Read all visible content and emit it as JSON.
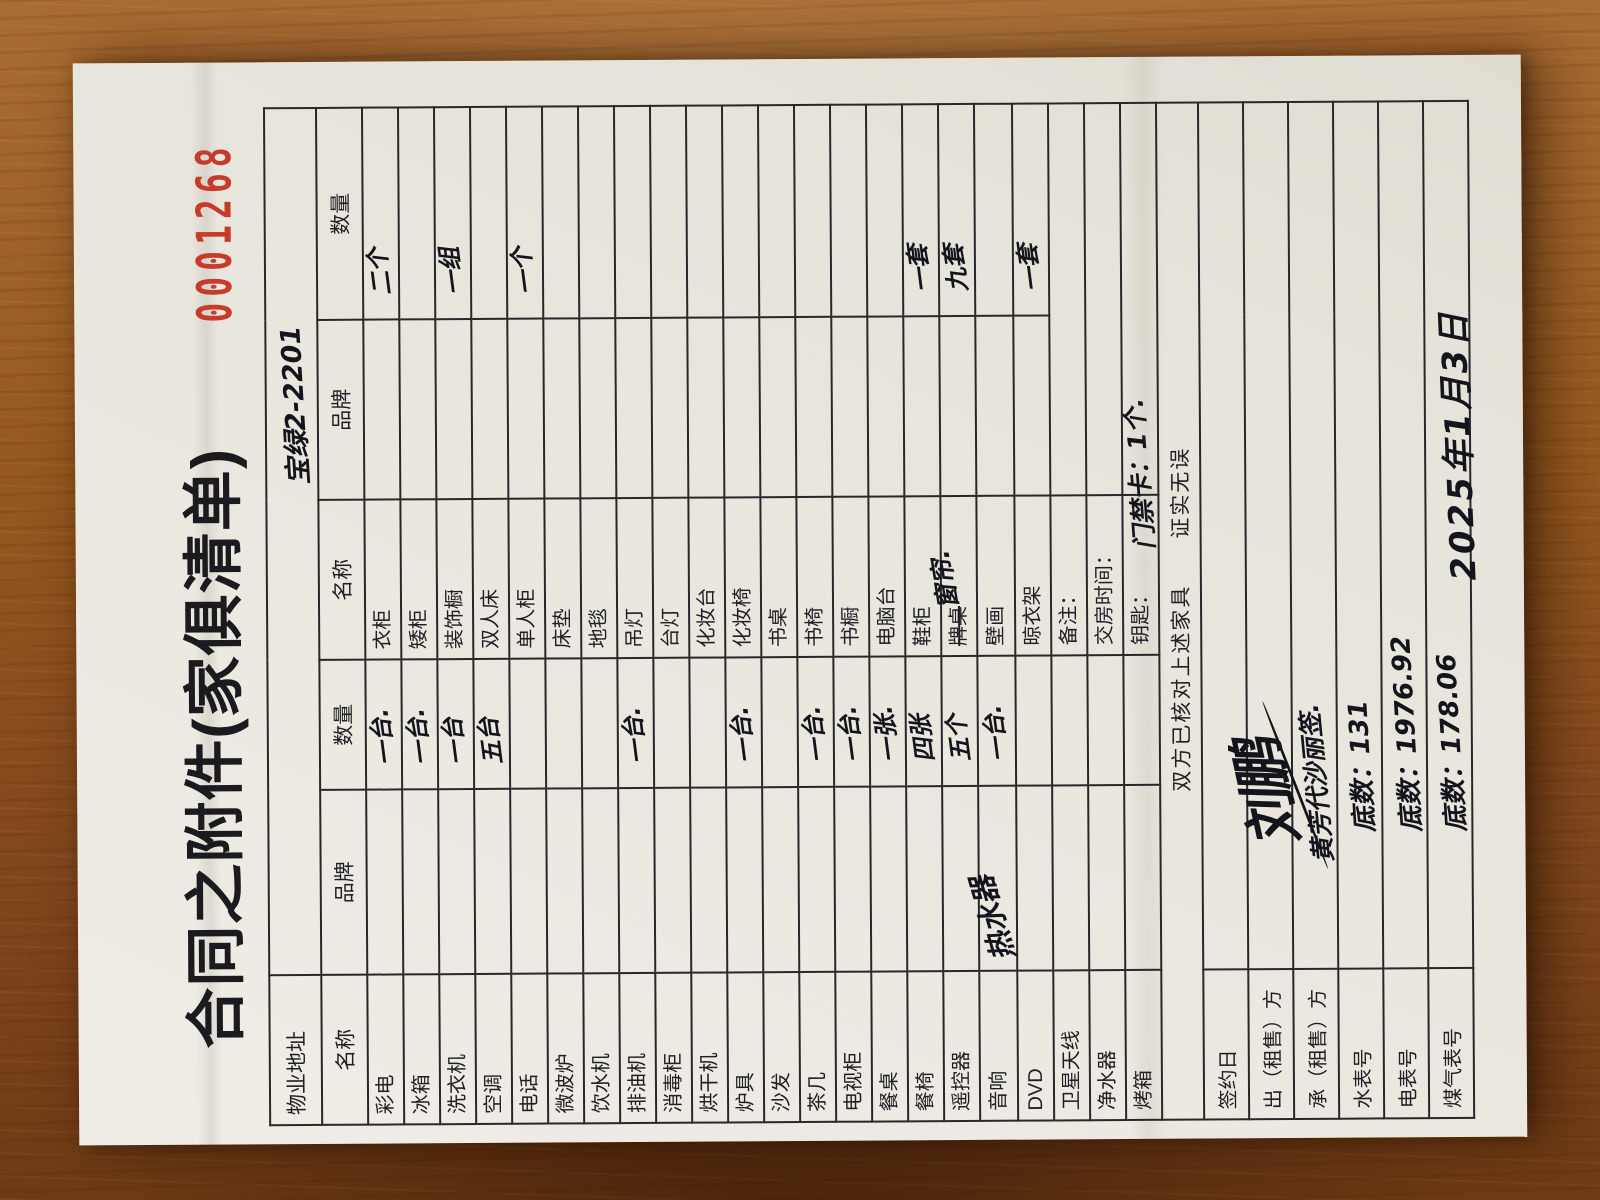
{
  "page": {
    "title": "合同之附件(家俱清单)",
    "serial": "0001268",
    "date_note": "2025年1月3日"
  },
  "colors": {
    "serial_red": "#c63b2c",
    "ink_print": "#1f1f24",
    "ink_pen": "#14141c",
    "paper": "#eae7df",
    "wood": "#96591f"
  },
  "property_row": {
    "label": "物业地址",
    "value_handwritten": "宝绿2-2201"
  },
  "headers": [
    "名称",
    "品牌",
    "数量",
    "名称",
    "品牌",
    "数量"
  ],
  "rows": [
    {
      "n1": "彩电",
      "b1": "",
      "q1": "一台.",
      "n2": "衣柜",
      "b2": "",
      "q2": "二个"
    },
    {
      "n1": "冰箱",
      "b1": "",
      "q1": "一台.",
      "n2": "矮柜",
      "b2": "",
      "q2": ""
    },
    {
      "n1": "洗衣机",
      "b1": "",
      "q1": "一台",
      "n2": "装饰橱",
      "b2": "",
      "q2": "一组"
    },
    {
      "n1": "空调",
      "b1": "",
      "q1": "五台",
      "n2": "双人床",
      "b2": "",
      "q2": ""
    },
    {
      "n1": "电话",
      "b1": "",
      "q1": "",
      "n2": "单人柜",
      "b2": "",
      "q2": "一个"
    },
    {
      "n1": "微波炉",
      "b1": "",
      "q1": "",
      "n2": "床垫",
      "b2": "",
      "q2": ""
    },
    {
      "n1": "饮水机",
      "b1": "",
      "q1": "",
      "n2": "地毯",
      "b2": "",
      "q2": ""
    },
    {
      "n1": "排油机",
      "b1": "",
      "q1": "一台.",
      "n2": "吊灯",
      "b2": "",
      "q2": ""
    },
    {
      "n1": "消毒柜",
      "b1": "",
      "q1": "",
      "n2": "台灯",
      "b2": "",
      "q2": ""
    },
    {
      "n1": "烘干机",
      "b1": "",
      "q1": "",
      "n2": "化妆台",
      "b2": "",
      "q2": ""
    },
    {
      "n1": "炉具",
      "b1": "",
      "q1": "一台.",
      "n2": "化妆椅",
      "b2": "",
      "q2": ""
    },
    {
      "n1": "沙发",
      "b1": "",
      "q1": "",
      "n2": "书桌",
      "b2": "",
      "q2": ""
    },
    {
      "n1": "茶几",
      "b1": "",
      "q1": "一台.",
      "n2": "书椅",
      "b2": "",
      "q2": ""
    },
    {
      "n1": "电视柜",
      "b1": "",
      "q1": "一台.",
      "n2": "书橱",
      "b2": "",
      "q2": ""
    },
    {
      "n1": "餐桌",
      "b1": "",
      "q1": "一张.",
      "n2": "电脑台",
      "b2": "",
      "q2": ""
    },
    {
      "n1": "餐椅",
      "b1": "",
      "q1": "四张",
      "n2": "鞋柜",
      "b2": "",
      "q2": "一套"
    },
    {
      "n1": "遥控器",
      "b1": "",
      "q1": "五个",
      "n2": "",
      "n2_struck": "牌桌",
      "n2_hw": "窗帘.",
      "b2": "",
      "q2": "九套"
    },
    {
      "n1": "音响",
      "b1": "",
      "b1_hw": "热水器",
      "q1": "一台.",
      "n2": "壁画",
      "b2": "",
      "q2": ""
    },
    {
      "n1": "DVD",
      "b1": "",
      "q1": "",
      "n2": "晾衣架",
      "b2": "",
      "q2": "一套"
    },
    {
      "n1": "卫星天线",
      "b1": "",
      "q1": "",
      "n2": "备注：",
      "merge": true
    },
    {
      "n1": "净水器",
      "b1": "",
      "q1": "",
      "n2": "交房时间：",
      "merge": true
    },
    {
      "n1": "烤箱",
      "b1": "",
      "q1": "",
      "n2": "钥匙：",
      "n2_hw_long": "门禁卡：1个.",
      "merge": true
    }
  ],
  "verify_row": {
    "text": "双方已核对上述家具　　证实无误"
  },
  "bottom_rows": [
    {
      "label": "签约日",
      "value": "",
      "kind": "empty"
    },
    {
      "label": "出（租售）方",
      "value": "刘鹏",
      "kind": "signature"
    },
    {
      "label": "承（租售）方",
      "value": "黄芳代沙丽签.",
      "kind": "tenant"
    },
    {
      "label": "水表号",
      "value": "底数：131",
      "kind": "meter"
    },
    {
      "label": "电表号",
      "value": "底数：1976.92",
      "kind": "meter"
    },
    {
      "label": "煤气表号",
      "value": "底数：178.06",
      "kind": "meter"
    }
  ]
}
